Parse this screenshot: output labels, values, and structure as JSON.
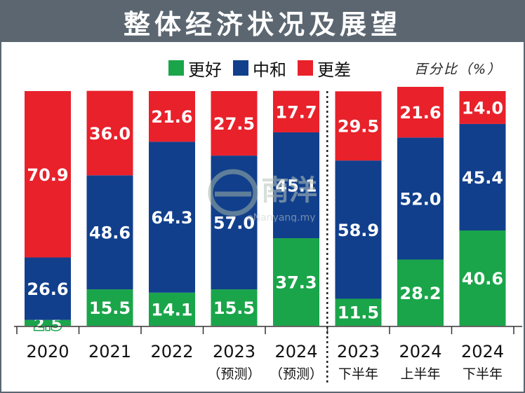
{
  "title": "整体经济状况及展望",
  "unit_label": "百分比（%）",
  "legend": [
    {
      "label": "更好",
      "color": "#1aa54a"
    },
    {
      "label": "中和",
      "color": "#113f8c"
    },
    {
      "label": "更差",
      "color": "#e8212b"
    }
  ],
  "watermark": {
    "text": "eNanyang.my"
  },
  "chart_data": {
    "type": "bar",
    "stacked": true,
    "categories": [
      [
        "2020"
      ],
      [
        "2021"
      ],
      [
        "2022"
      ],
      [
        "2023",
        "（预测）"
      ],
      [
        "2024",
        "（预测）"
      ],
      [
        "2023",
        "下半年"
      ],
      [
        "2024",
        "上半年"
      ],
      [
        "2024",
        "下半年"
      ]
    ],
    "series": [
      {
        "name": "更好",
        "color": "#1aa54a",
        "values": [
          2.5,
          15.5,
          14.1,
          15.5,
          37.3,
          11.5,
          28.2,
          40.6
        ]
      },
      {
        "name": "中和",
        "color": "#113f8c",
        "values": [
          26.6,
          48.6,
          64.3,
          57.0,
          45.1,
          58.9,
          52.0,
          45.4
        ]
      },
      {
        "name": "更差",
        "color": "#e8212b",
        "values": [
          70.9,
          36.0,
          21.6,
          27.5,
          17.7,
          29.5,
          21.6,
          14.0
        ]
      }
    ],
    "labels": [
      [
        "2.5",
        "15.5",
        "14.1",
        "15.5",
        "37.3",
        "11.5",
        "28.2",
        "40.6"
      ],
      [
        "26.6",
        "48.6",
        "64.3",
        "57.0",
        "45.1",
        "58.9",
        "52.0",
        "45.4"
      ],
      [
        "70.9",
        "36.0",
        "21.6",
        "27.5",
        "17.7",
        "29.5",
        "21.6",
        "14.0"
      ]
    ],
    "ylim": [
      0,
      100
    ],
    "divider_after_index": 4
  }
}
